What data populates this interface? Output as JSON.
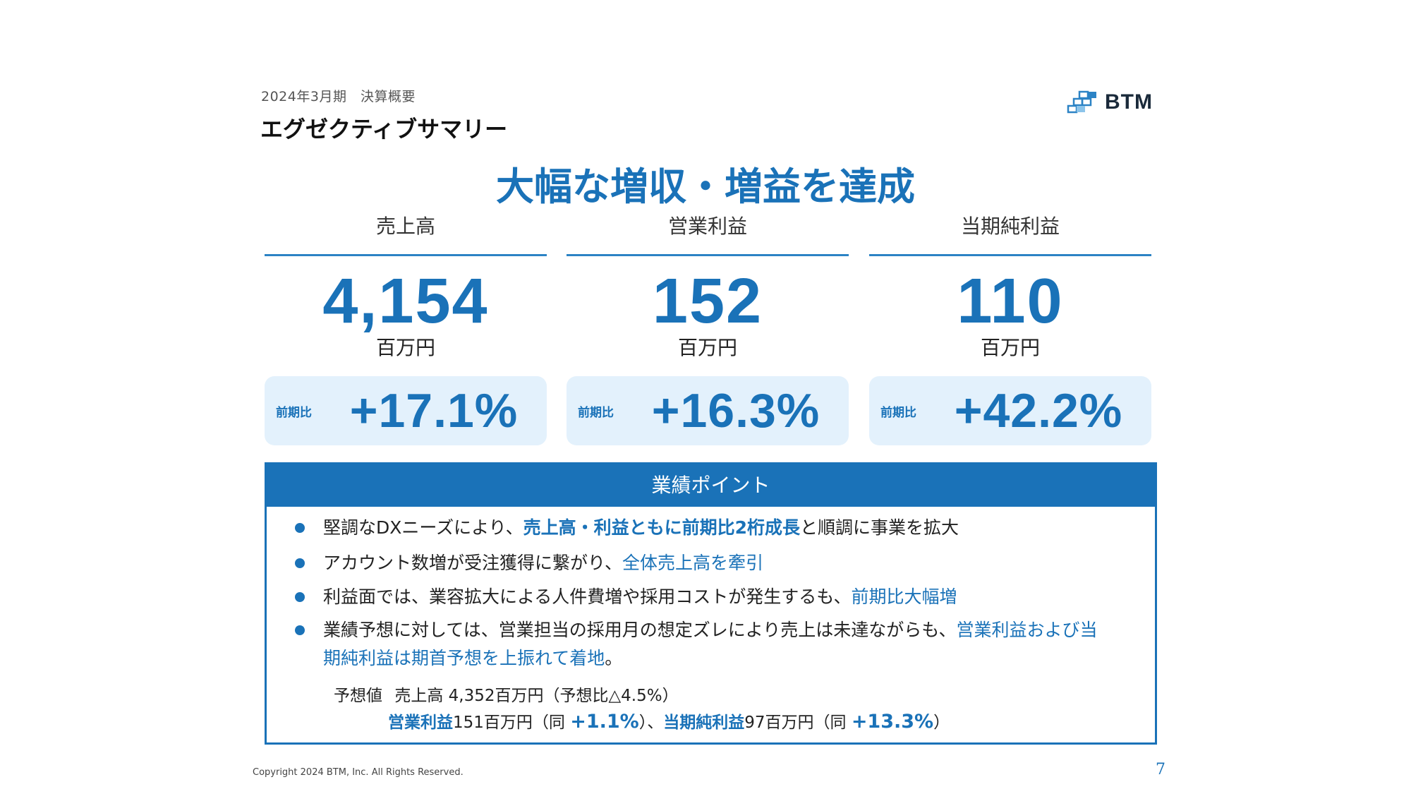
{
  "header": {
    "subtitle": "2024年3月期　決算概要",
    "title": "エグゼクティブサマリー",
    "logo_text": "BTM"
  },
  "headline": "大幅な増収・増益を達成",
  "metrics": [
    {
      "label": "売上高",
      "value": "4,154",
      "unit": "百万円",
      "yoy_label": "前期比",
      "yoy_value": "+17.1%"
    },
    {
      "label": "営業利益",
      "value": "152",
      "unit": "百万円",
      "yoy_label": "前期比",
      "yoy_value": "+16.3%"
    },
    {
      "label": "当期純利益",
      "value": "110",
      "unit": "百万円",
      "yoy_label": "前期比",
      "yoy_value": "+42.2%"
    }
  ],
  "points": {
    "title": "業績ポイント",
    "items": [
      {
        "text": "堅調なDXニーズにより、",
        "highlight": "売上高・利益ともに前期比2桁成長",
        "tail": "と順調に事業を拡大"
      },
      {
        "text": "アカウント数増が受注獲得に繋がり、",
        "highlight": "全体売上高を牽引",
        "tail": ""
      },
      {
        "text": "利益面では、業容拡大による人件費増や採用コストが発生するも、",
        "highlight": "前期比大幅増",
        "tail": ""
      },
      {
        "text": "業績予想に対しては、営業担当の採用月の想定ズレにより売上は未達ながらも、",
        "highlight": "営業利益および当期純利益は期首予想を上振れて着地",
        "tail": "。"
      }
    ],
    "forecast": {
      "label": "予想値",
      "line1": "売上高 4,352百万円（予想比△4.5%）",
      "op_label": "営業利益",
      "op_value": "151百万円（同 ",
      "op_change": "+1.1%",
      "op_close": "）、",
      "net_label": "当期純利益",
      "net_value": "97百万円（同 ",
      "net_change": "+13.3%",
      "net_close": "）"
    }
  },
  "footer": {
    "copyright": "Copyright 2024 BTM, Inc. All Rights Reserved.",
    "page_number": "7"
  },
  "colors": {
    "accent": "#1a72b8",
    "box_bg": "#e3f1fc"
  }
}
